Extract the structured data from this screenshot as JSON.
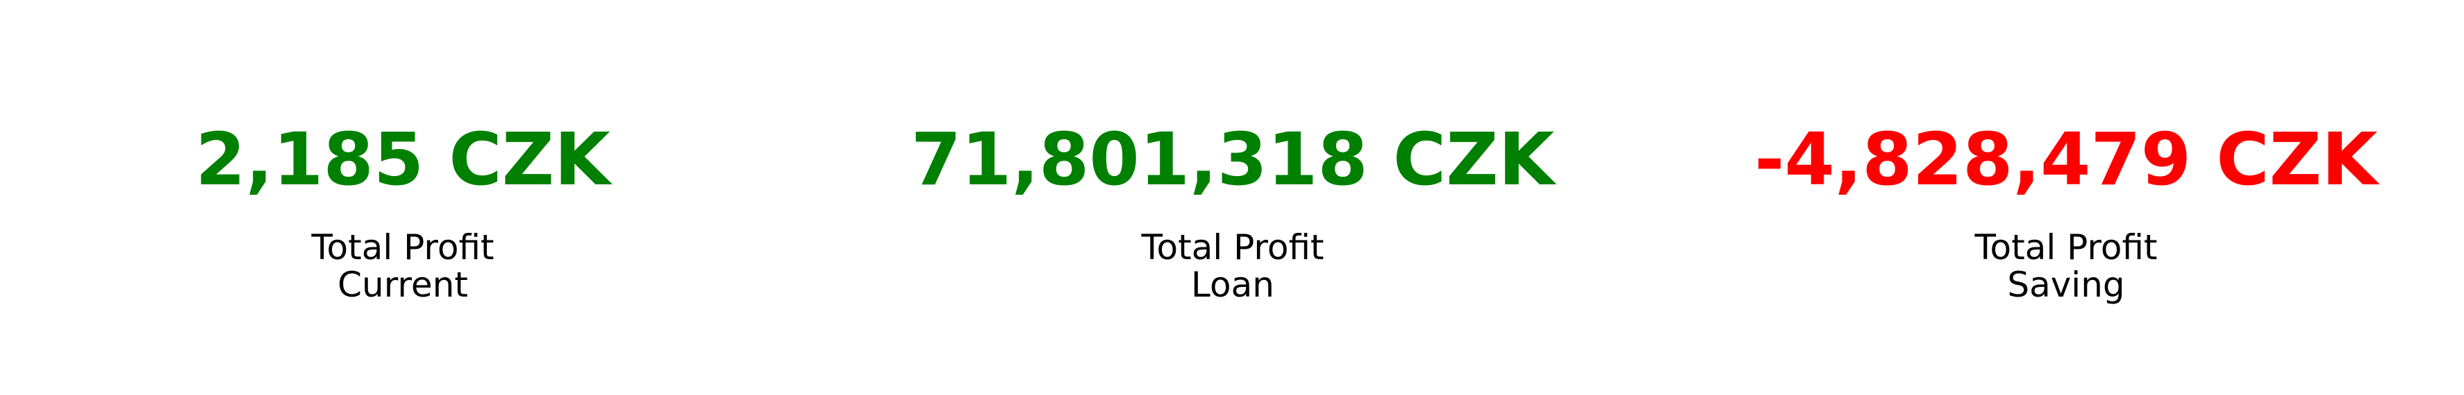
{
  "chart_data": {
    "type": "table",
    "currency": "CZK",
    "kpis": [
      {
        "value": 2185,
        "value_text": "2,185 CZK",
        "label_line1": "Total Profit",
        "label_line2": "Current",
        "color": "#008000"
      },
      {
        "value": 71801318,
        "value_text": "71,801,318 CZK",
        "label_line1": "Total Profit",
        "label_line2": "Loan",
        "color": "#008000"
      },
      {
        "value": -4828479,
        "value_text": "-4,828,479 CZK",
        "label_line1": "Total Profit",
        "label_line2": "Saving",
        "color": "#ff0000"
      }
    ]
  }
}
